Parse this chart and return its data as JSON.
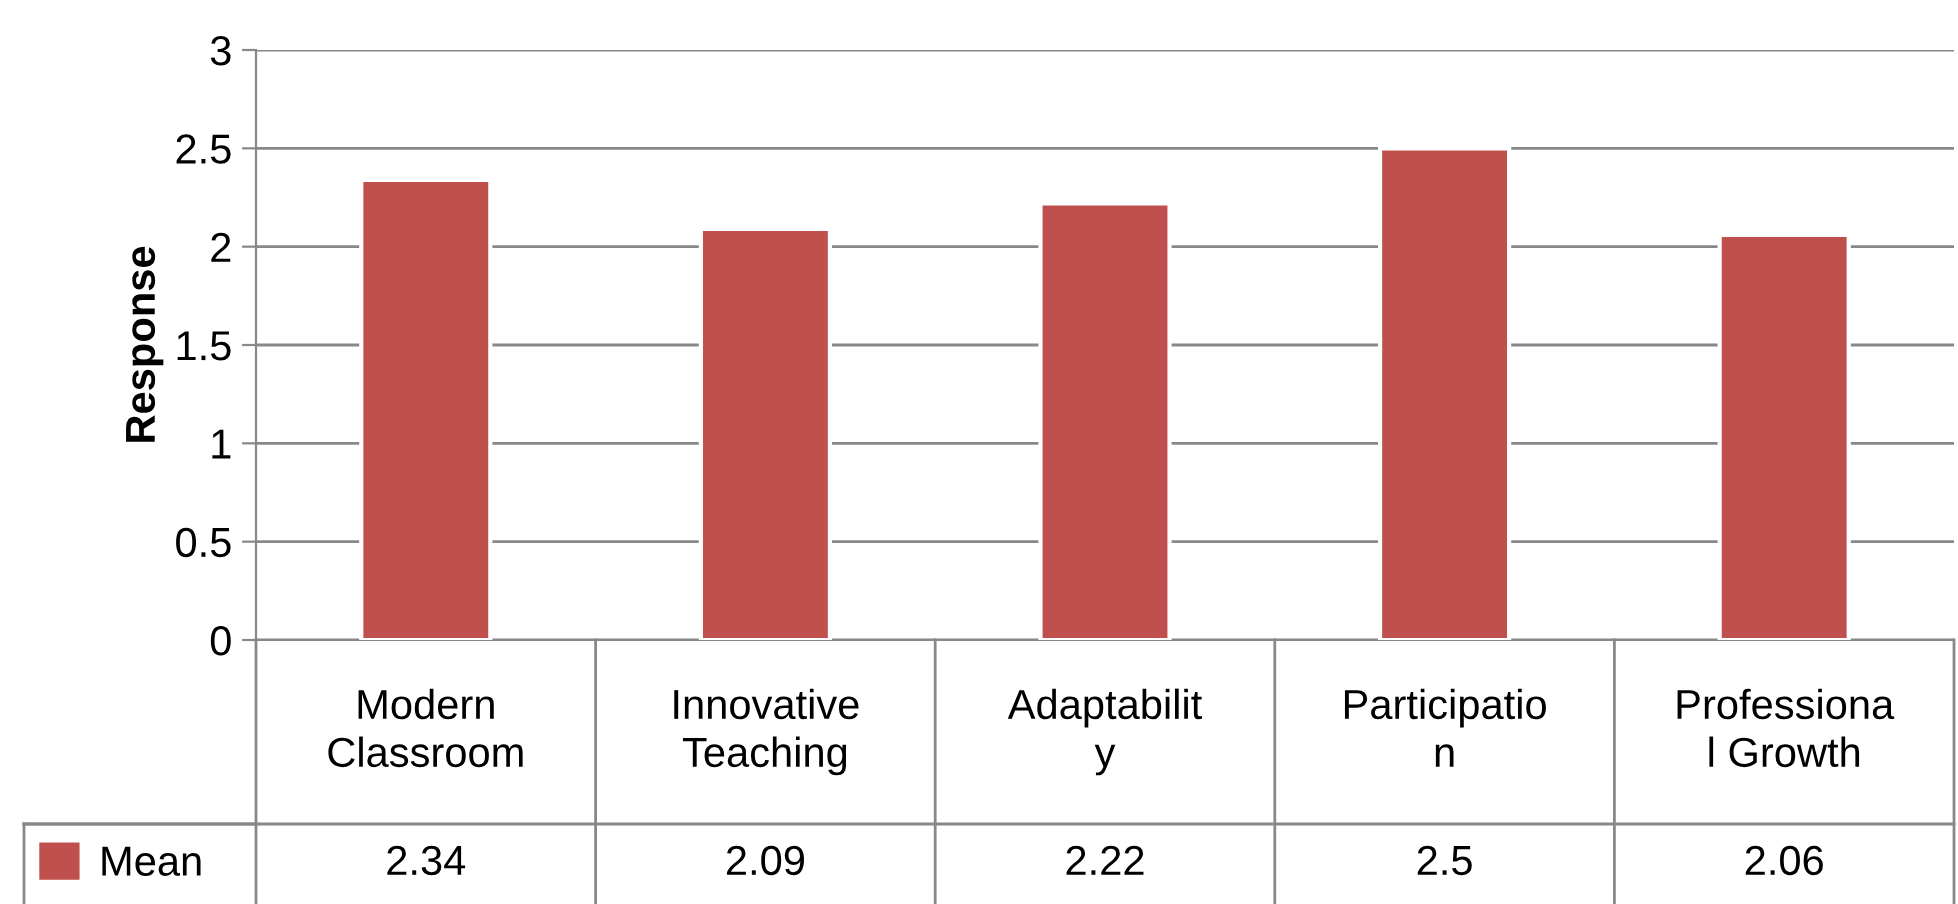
{
  "chart_data": {
    "type": "bar",
    "ylabel": "Response",
    "categories": [
      "Modern\nClassroom",
      "Innovative\nTeaching",
      "Adaptabilit\ny",
      "Participatio\nn",
      "Professiona\nl Growth"
    ],
    "series": [
      {
        "name": "Mean",
        "color": "#c0504d",
        "values": [
          2.34,
          2.09,
          2.22,
          2.5,
          2.06
        ]
      }
    ],
    "ylim": [
      0,
      3
    ],
    "yticks": [
      0,
      0.5,
      1,
      1.5,
      2,
      2.5,
      3
    ],
    "grid": "y",
    "legend": "bottom left",
    "data_labels": true
  }
}
